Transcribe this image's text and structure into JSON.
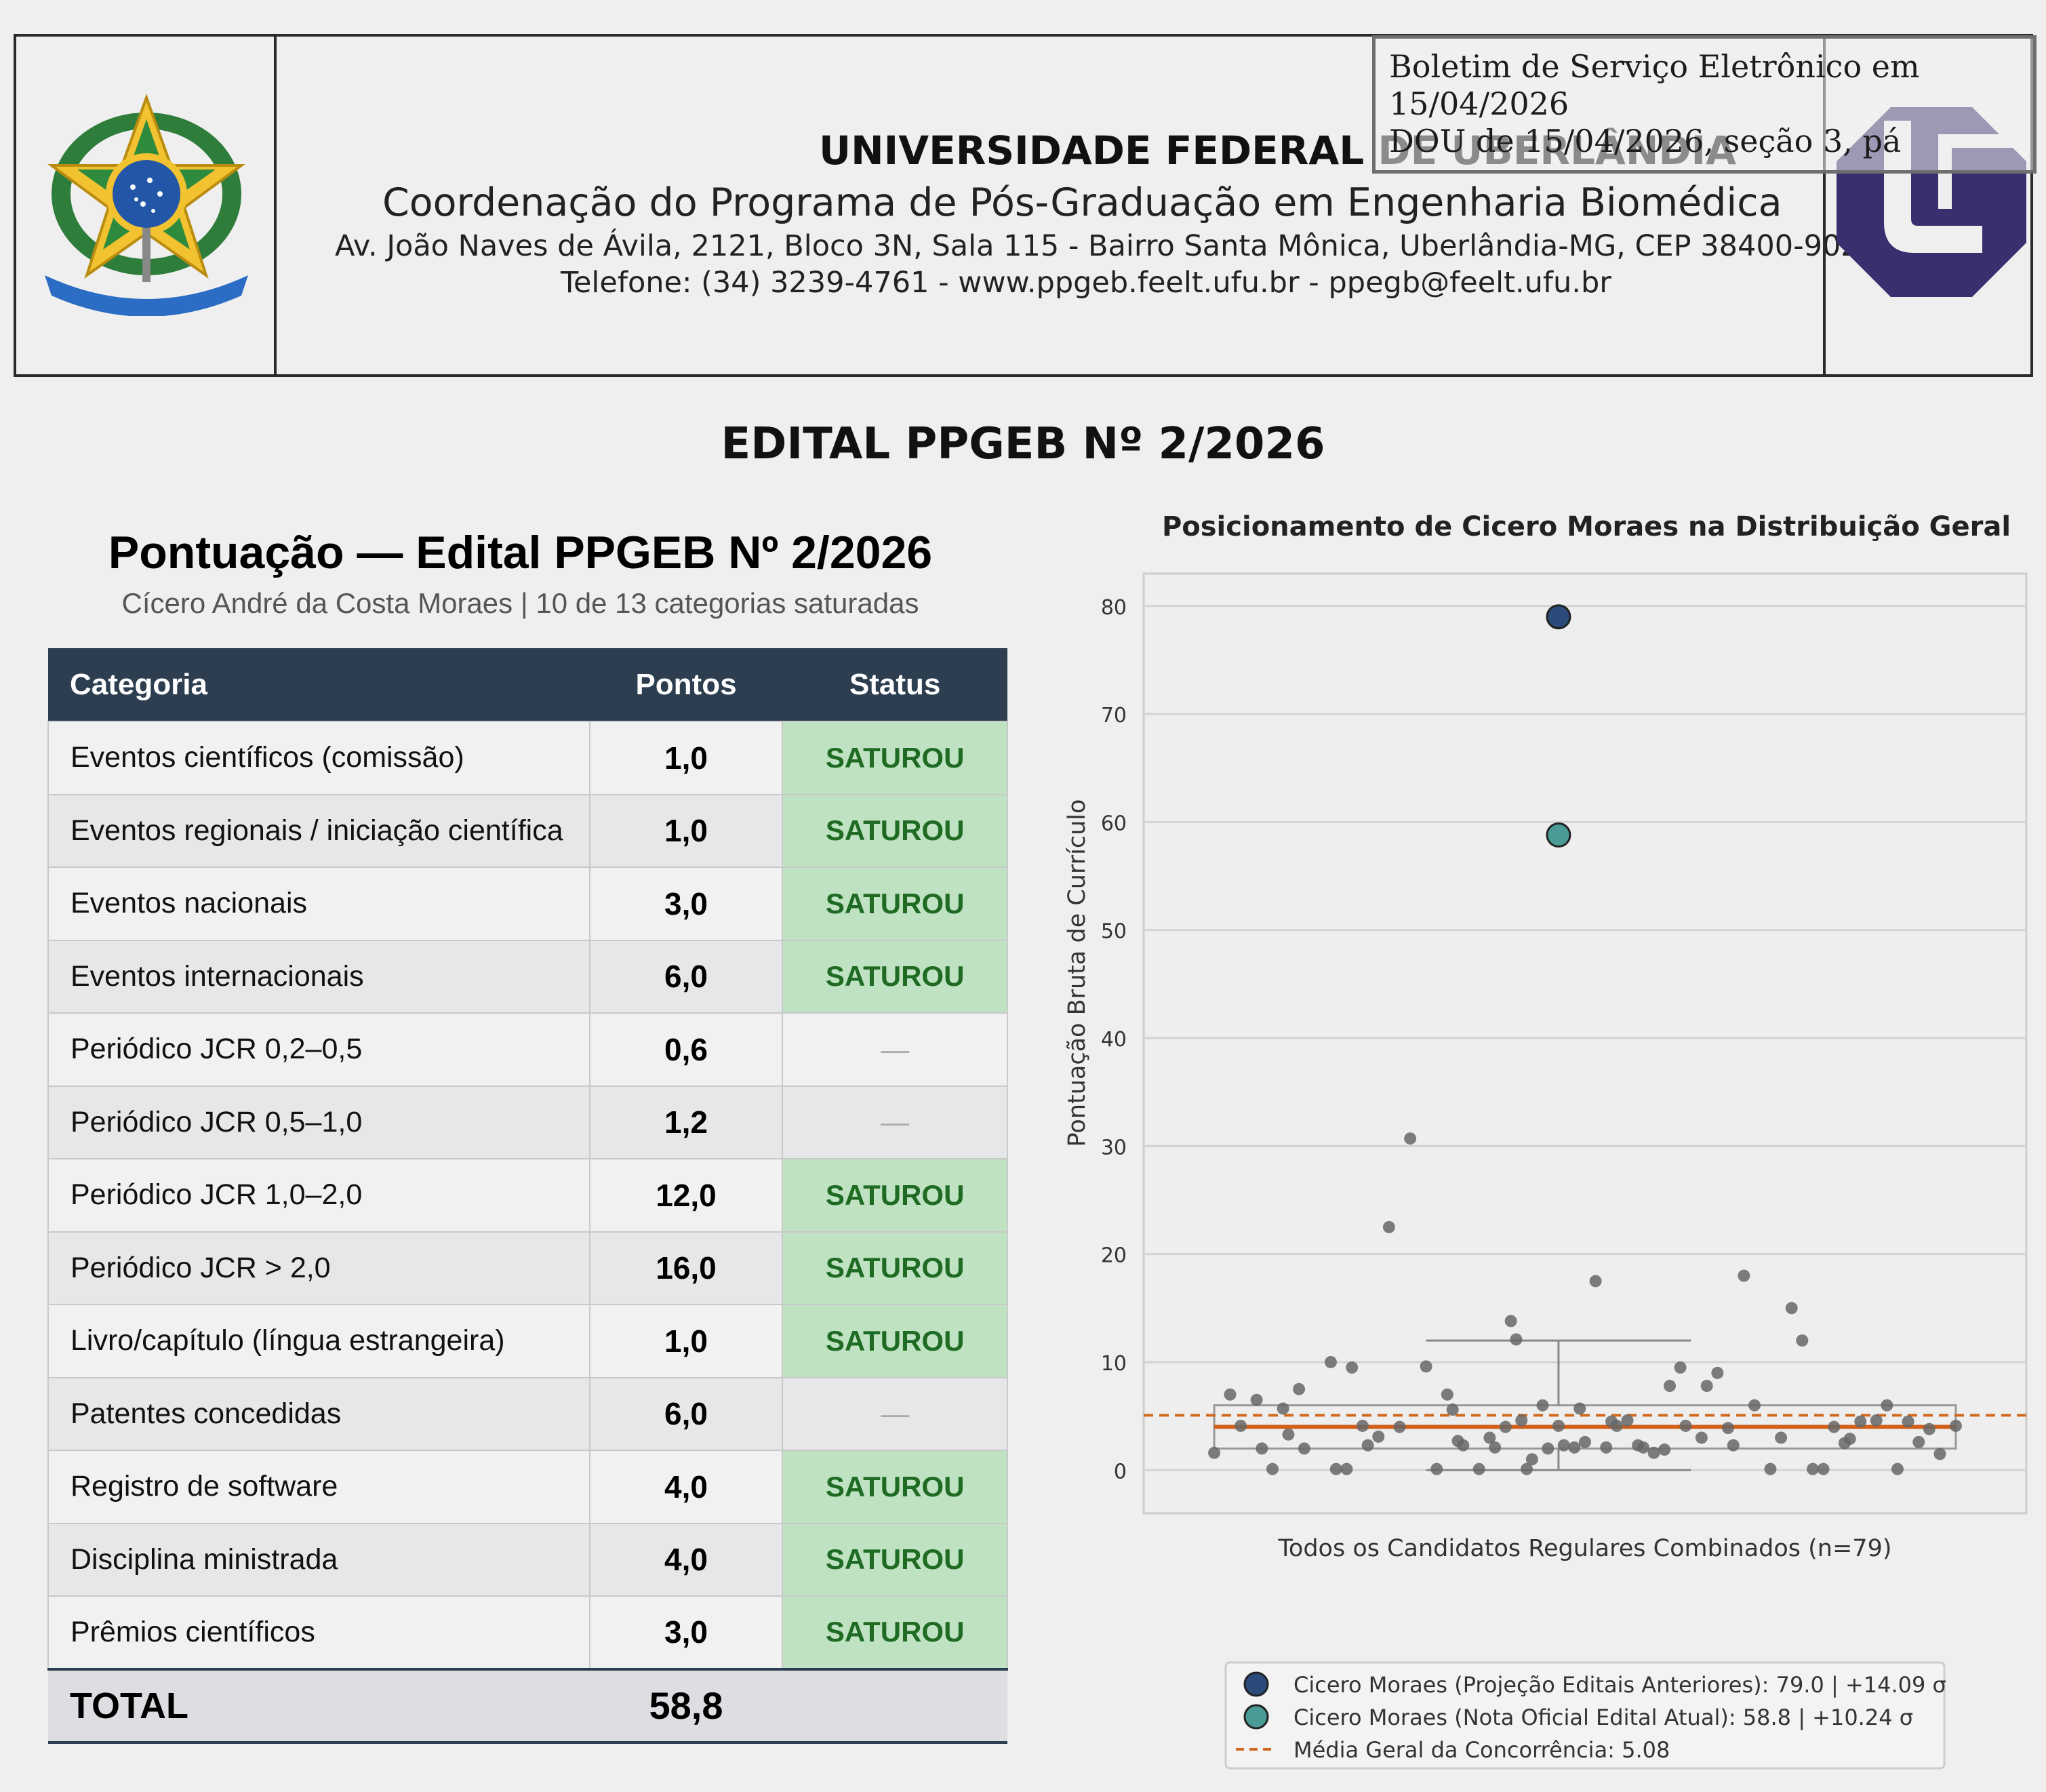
{
  "header": {
    "coat_of_arms_label": "REPÚBLICA FEDERATIVA DO BRASIL",
    "university": "UNIVERSIDADE FEDERAL DE UBERLÂNDIA",
    "coordination": "Coordenação do Programa de Pós-Graduação em Engenharia Biomédica",
    "address": "Av. João Naves de Ávila, 2121, Bloco 3N, Sala 115 - Bairro Santa Mônica, Uberlândia-MG, CEP 38400-902",
    "phone": "Telefone: (34) 3239-4761 - www.ppgeb.feelt.ufu.br - ppegb@feelt.ufu.br",
    "logo_icon": "ufu-logo-icon",
    "logo_color": "#3a2e6e"
  },
  "stamp": {
    "line1": "Boletim de Serviço Eletrônico em",
    "line2": "15/04/2026",
    "line3": "DOU de 15/04/2026, seção 3, pá"
  },
  "document_title": "EDITAL PPGEB Nº 2/2026",
  "score_table": {
    "title": "Pontuação — Edital PPGEB Nº 2/2026",
    "subtitle": "Cícero André da Costa Moraes | 10 de 13 categorias saturadas",
    "headers": {
      "category": "Categoria",
      "points": "Pontos",
      "status": "Status"
    },
    "rows": [
      {
        "category": "Eventos científicos (comissão)",
        "points": "1,0",
        "status": "SATUROU"
      },
      {
        "category": "Eventos regionais / iniciação científica",
        "points": "1,0",
        "status": "SATUROU"
      },
      {
        "category": "Eventos nacionais",
        "points": "3,0",
        "status": "SATUROU"
      },
      {
        "category": "Eventos internacionais",
        "points": "6,0",
        "status": "SATUROU"
      },
      {
        "category": "Periódico JCR 0,2–0,5",
        "points": "0,6",
        "status": "—"
      },
      {
        "category": "Periódico JCR 0,5–1,0",
        "points": "1,2",
        "status": "—"
      },
      {
        "category": "Periódico JCR 1,0–2,0",
        "points": "12,0",
        "status": "SATUROU"
      },
      {
        "category": "Periódico JCR > 2,0",
        "points": "16,0",
        "status": "SATUROU"
      },
      {
        "category": "Livro/capítulo (língua estrangeira)",
        "points": "1,0",
        "status": "SATUROU"
      },
      {
        "category": "Patentes concedidas",
        "points": "6,0",
        "status": "—"
      },
      {
        "category": "Registro de software",
        "points": "4,0",
        "status": "SATUROU"
      },
      {
        "category": "Disciplina ministrada",
        "points": "4,0",
        "status": "SATUROU"
      },
      {
        "category": "Prêmios científicos",
        "points": "3,0",
        "status": "SATUROU"
      }
    ],
    "total_label": "TOTAL",
    "total_points": "58,8",
    "colors": {
      "header_bg": "#2c3e50",
      "saturated_bg": "#bfe3c2",
      "saturated_text": "#1f6b23"
    }
  },
  "chart_data": {
    "type": "scatter",
    "title": "Posicionamento de Cicero Moraes na Distribuição Geral",
    "xlabel": "Todos os Candidatos Regulares Combinados (n=79)",
    "ylabel": "Pontuação Bruta de Currículo",
    "ylim": [
      -4,
      83
    ],
    "yticks": [
      0,
      10,
      20,
      30,
      40,
      50,
      60,
      70,
      80
    ],
    "grid": true,
    "boxplot": {
      "min": 0,
      "q1": 2,
      "median": 4,
      "q3": 6,
      "max": 12
    },
    "mean": 5.08,
    "population": {
      "x": [
        0.05,
        0.08,
        0.1,
        0.13,
        0.14,
        0.16,
        0.18,
        0.19,
        0.21,
        0.22,
        0.27,
        0.28,
        0.3,
        0.31,
        0.33,
        0.34,
        0.36,
        0.38,
        0.4,
        0.42,
        0.45,
        0.47,
        0.49,
        0.5,
        0.51,
        0.52,
        0.55,
        0.57,
        0.58,
        0.6,
        0.61,
        0.62,
        0.63,
        0.64,
        0.65,
        0.67,
        0.68,
        0.7,
        0.71,
        0.73,
        0.74,
        0.75,
        0.77,
        0.79,
        0.8,
        0.81,
        0.83,
        0.85,
        0.86,
        0.88,
        0.9,
        0.91,
        0.93,
        0.94,
        0.97,
        0.98,
        1.0,
        1.02,
        1.03,
        1.05,
        1.07,
        1.1,
        1.12,
        1.14,
        1.16,
        1.18,
        1.2,
        1.22,
        1.24,
        1.25,
        1.27,
        1.3,
        1.32,
        1.34,
        1.36,
        1.38,
        1.4,
        1.42,
        1.45
      ],
      "y": [
        1.6,
        7,
        4.1,
        6.5,
        2,
        0.1,
        5.7,
        3.3,
        7.5,
        2,
        10,
        0.1,
        0.1,
        9.5,
        4.1,
        2.3,
        3.1,
        22.5,
        4,
        30.7,
        9.6,
        0.1,
        7,
        5.6,
        2.7,
        2.3,
        0.1,
        3,
        2.1,
        4,
        13.8,
        12.1,
        4.6,
        0.1,
        1,
        6,
        2,
        4.1,
        2.3,
        2.1,
        5.7,
        2.6,
        17.5,
        2.1,
        4.5,
        4.1,
        4.6,
        2.3,
        2.1,
        1.6,
        1.9,
        7.8,
        9.5,
        4.1,
        3,
        7.8,
        9,
        3.9,
        2.3,
        18,
        6,
        0.1,
        3,
        15,
        12,
        0.1,
        0.1,
        4,
        2.5,
        2.9,
        4.5,
        4.6,
        6,
        0.1,
        4.5,
        2.6,
        3.8,
        1.5,
        4.1
      ],
      "color": "#666666"
    },
    "highlights": [
      {
        "name": "Cicero Moraes (Projeção Editais Anteriores)",
        "y": 79.0,
        "sigma": "+14.09 σ",
        "color": "#2b4b7a"
      },
      {
        "name": "Cicero Moraes (Nota Oficial Edital Atual)",
        "y": 58.8,
        "sigma": "+10.24 σ",
        "color": "#4a9a96"
      }
    ],
    "legend": {
      "position": "bottom",
      "entries": [
        "Cicero Moraes (Projeção Editais Anteriores): 79.0 | +14.09 σ",
        "Cicero Moraes (Nota Oficial Edital Atual): 58.8 | +10.24 σ",
        "Média Geral da Concorrência: 5.08"
      ]
    },
    "mean_line_color": "#d2691e",
    "median_line_color": "#d2601a"
  }
}
